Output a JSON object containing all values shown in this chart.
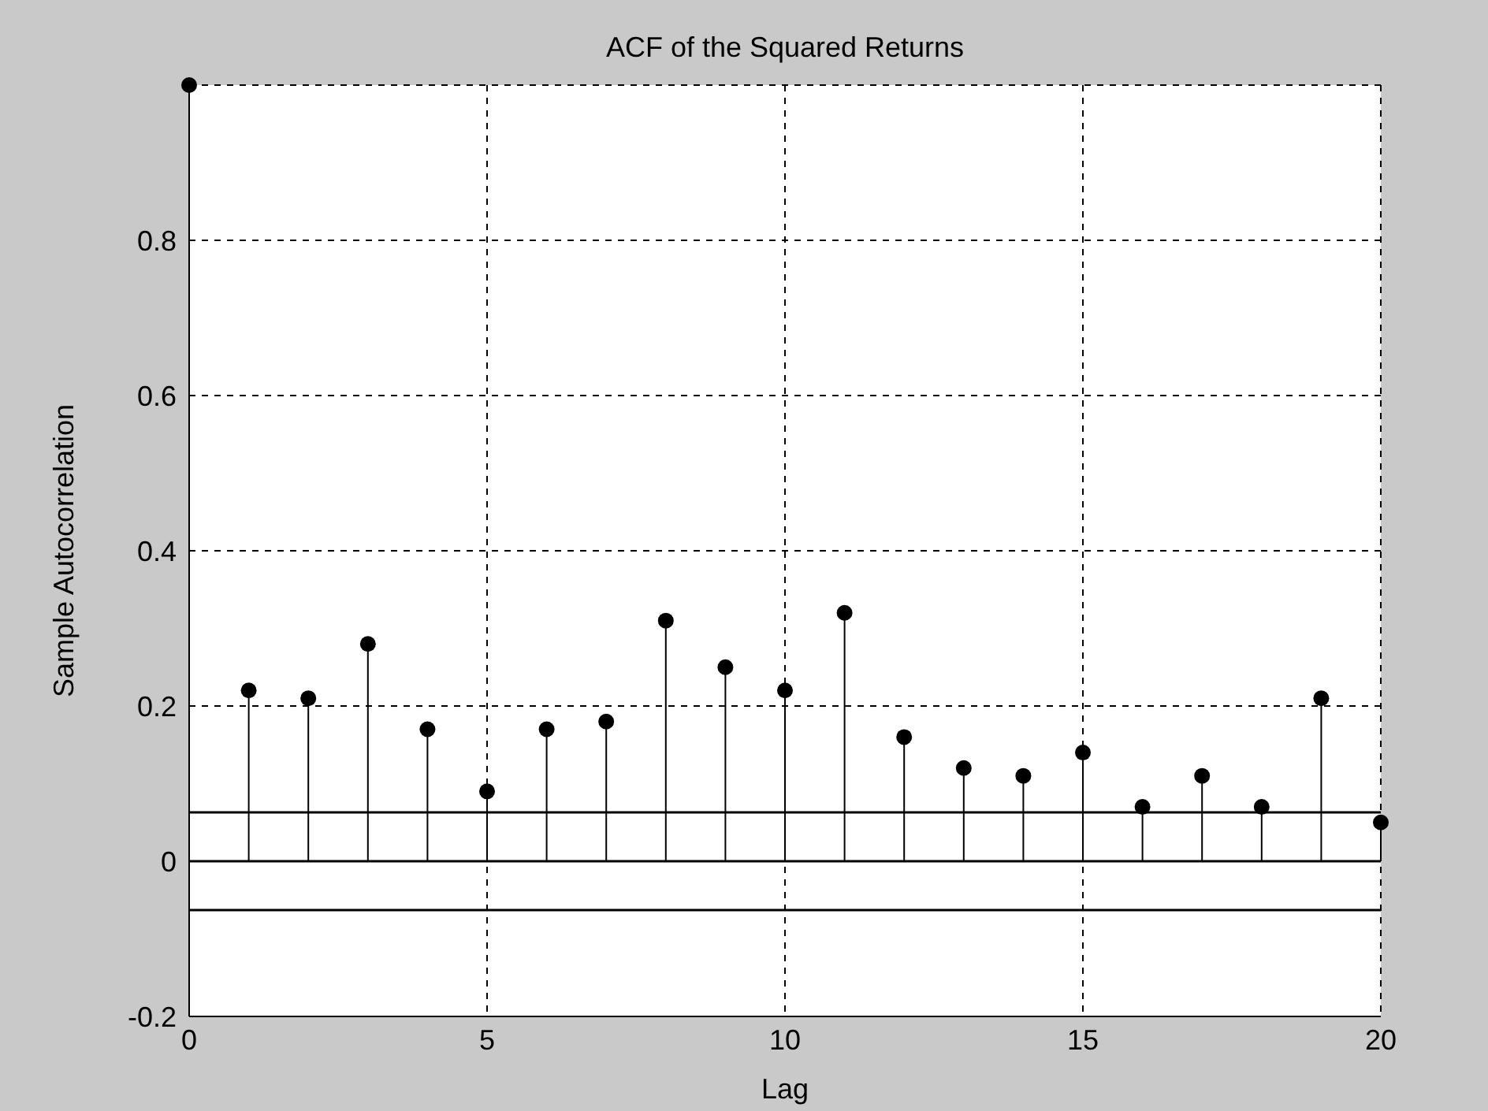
{
  "chart_data": {
    "type": "lollipop",
    "title": "ACF of the Squared Returns",
    "xlabel": "Lag",
    "ylabel": "Sample Autocorrelation",
    "x": [
      0,
      1,
      2,
      3,
      4,
      5,
      6,
      7,
      8,
      9,
      10,
      11,
      12,
      13,
      14,
      15,
      16,
      17,
      18,
      19,
      20
    ],
    "values": [
      1,
      0.22,
      0.21,
      0.28,
      0.17,
      0.09,
      0.17,
      0.18,
      0.31,
      0.25,
      0.22,
      0.32,
      0.16,
      0.12,
      0.11,
      0.14,
      0.07,
      0.11,
      0.07,
      0.21,
      0.05
    ],
    "color": "#000000",
    "marker": "circle",
    "ref_lines": [
      {
        "axis": "y",
        "value": 0.063,
        "color": "#000000",
        "line_style": "solid"
      },
      {
        "axis": "y",
        "value": 0,
        "color": "#000000",
        "line_style": "solid"
      },
      {
        "axis": "y",
        "value": -0.063,
        "color": "#000000",
        "line_style": "solid"
      }
    ],
    "xlim": [
      0,
      20
    ],
    "xticks": [
      0,
      5,
      10,
      15,
      20
    ],
    "ylim": [
      -0.2,
      1
    ],
    "yticks": [
      -0.2,
      0,
      0.2,
      0.4,
      0.6,
      0.8
    ],
    "grid": true
  }
}
